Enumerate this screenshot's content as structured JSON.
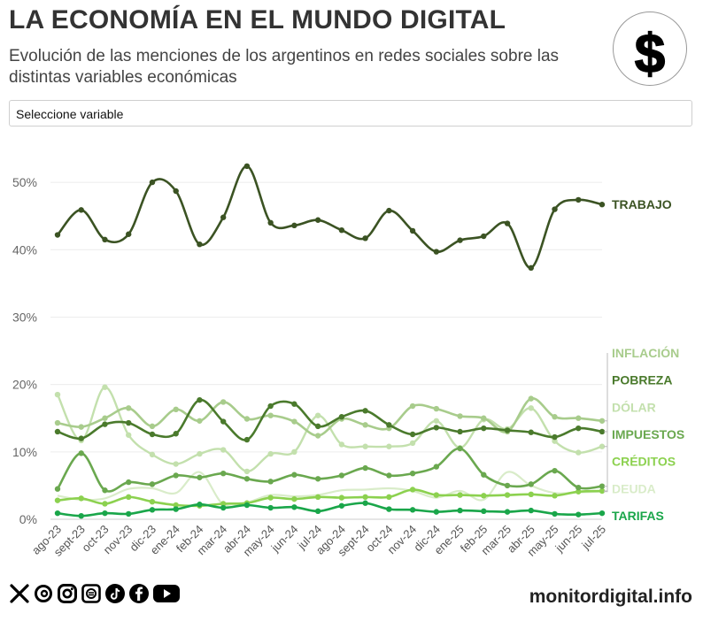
{
  "header": {
    "title": "LA ECONOMÍA EN EL MUNDO DIGITAL",
    "subtitle": "Evolución de las menciones de los argentinos en redes sociales sobre las distintas variables económicas",
    "logo_symbol": "$"
  },
  "select": {
    "label": "Seleccione variable"
  },
  "footer": {
    "site": "monitordigital.info"
  },
  "social_icons": [
    "x-icon",
    "threads-icon",
    "instagram-icon",
    "news-icon",
    "tiktok-icon",
    "facebook-icon",
    "youtube-icon"
  ],
  "chart_data": {
    "type": "line",
    "ylim": [
      0,
      55
    ],
    "yticks": [
      0,
      10,
      20,
      30,
      40,
      50
    ],
    "ytick_labels": [
      "0%",
      "10%",
      "20%",
      "30%",
      "40%",
      "50%"
    ],
    "categories": [
      "ago-23",
      "sept-23",
      "oct-23",
      "nov-23",
      "dic-23",
      "ene-24",
      "feb-24",
      "mar-24",
      "abr-24",
      "may-24",
      "jun-24",
      "jul-24",
      "ago-24",
      "sept-24",
      "oct-24",
      "nov-24",
      "dic-24",
      "ene-25",
      "feb-25",
      "mar-25",
      "abr-25",
      "may-25",
      "jun-25",
      "jul-25"
    ],
    "series": [
      {
        "name": "TRABAJO",
        "color": "#3b5323",
        "width": 2.6,
        "markers": true,
        "values": [
          42.2,
          45.9,
          41.5,
          42.3,
          50.0,
          48.7,
          40.8,
          44.8,
          52.4,
          44.0,
          43.6,
          44.4,
          42.9,
          41.7,
          45.8,
          42.8,
          39.7,
          41.4,
          42.0,
          43.9,
          37.3,
          46.0,
          47.4,
          46.7
        ]
      },
      {
        "name": "INFLACIÓN",
        "color": "#a8cc8c",
        "width": 2.6,
        "markers": true,
        "values": [
          14.3,
          13.7,
          15.0,
          16.5,
          13.8,
          16.3,
          14.6,
          17.4,
          14.9,
          15.4,
          14.5,
          12.4,
          14.9,
          14.0,
          13.5,
          16.8,
          16.4,
          15.3,
          15.0,
          13.0,
          17.9,
          15.2,
          15.0,
          14.6
        ]
      },
      {
        "name": "POBREZA",
        "color": "#4a7a2c",
        "width": 2.6,
        "markers": true,
        "values": [
          13.0,
          12.0,
          14.1,
          14.3,
          12.6,
          12.7,
          17.7,
          14.5,
          11.8,
          16.8,
          17.1,
          13.8,
          15.2,
          16.1,
          14.0,
          12.6,
          13.6,
          13.0,
          13.5,
          13.2,
          12.9,
          12.2,
          13.5,
          13.0
        ]
      },
      {
        "name": "DÓLAR",
        "color": "#c3e0ad",
        "width": 2.4,
        "markers": true,
        "values": [
          18.5,
          11.7,
          19.6,
          12.5,
          9.6,
          8.2,
          9.7,
          10.3,
          7.1,
          9.7,
          10.0,
          15.4,
          11.1,
          10.8,
          10.8,
          11.3,
          14.6,
          10.6,
          14.8,
          13.4,
          16.5,
          11.6,
          9.9,
          10.8
        ]
      },
      {
        "name": "DEUDA",
        "color": "#d9ecc9",
        "width": 2.2,
        "markers": false,
        "values": [
          3.5,
          2.9,
          3.1,
          4.5,
          4.6,
          3.9,
          7.0,
          2.2,
          2.5,
          3.6,
          3.4,
          3.6,
          4.3,
          4.4,
          4.6,
          4.2,
          3.2,
          4.2,
          2.9,
          7.0,
          5.0,
          3.9,
          4.0,
          4.1
        ]
      },
      {
        "name": "IMPUESTOS",
        "color": "#6aa84f",
        "width": 2.6,
        "markers": true,
        "values": [
          4.5,
          9.8,
          4.3,
          5.5,
          5.2,
          6.5,
          6.2,
          6.8,
          6.0,
          5.6,
          6.6,
          6.0,
          6.5,
          7.6,
          6.5,
          6.8,
          7.8,
          10.5,
          6.6,
          5.0,
          5.2,
          7.2,
          4.7,
          4.9
        ]
      },
      {
        "name": "CRÉDITOS",
        "color": "#8cd14f",
        "width": 2.6,
        "markers": true,
        "values": [
          2.8,
          3.1,
          2.3,
          3.3,
          2.6,
          2.1,
          2.0,
          2.3,
          2.4,
          3.2,
          3.0,
          3.3,
          3.2,
          3.3,
          3.3,
          4.4,
          3.6,
          3.6,
          3.5,
          3.6,
          3.7,
          3.5,
          4.1,
          4.2
        ]
      },
      {
        "name": "TARIFAS",
        "color": "#1aa64a",
        "width": 2.6,
        "markers": true,
        "values": [
          0.9,
          0.5,
          0.9,
          0.8,
          1.4,
          1.5,
          2.2,
          1.7,
          2.1,
          1.7,
          1.8,
          1.2,
          2.0,
          2.4,
          1.5,
          1.4,
          1.1,
          1.3,
          1.2,
          1.1,
          1.3,
          0.8,
          0.7,
          0.9
        ]
      }
    ]
  }
}
